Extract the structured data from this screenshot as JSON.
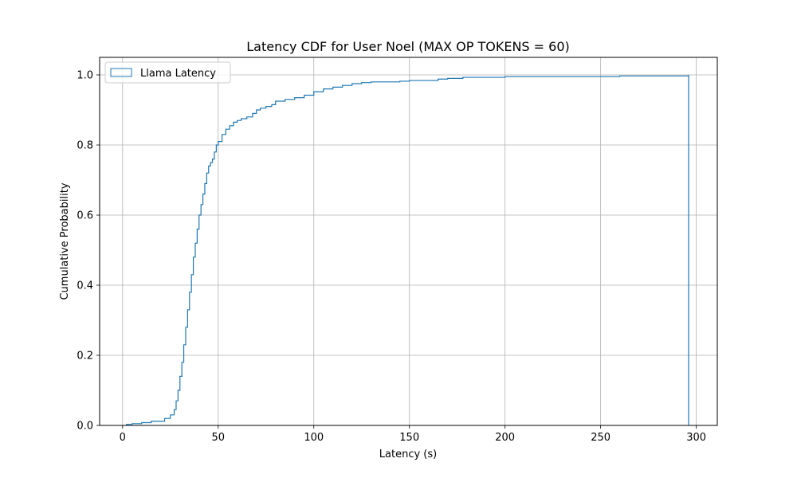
{
  "chart_data": {
    "type": "line",
    "title": "Latency CDF for User Noel (MAX OP TOKENS = 60)",
    "xlabel": "Latency (s)",
    "ylabel": "Cumulative Probability",
    "xlim": [
      -12,
      311
    ],
    "ylim": [
      0,
      1.05
    ],
    "xticks": [
      0,
      50,
      100,
      150,
      200,
      250,
      300
    ],
    "xtick_labels": [
      "0",
      "50",
      "100",
      "150",
      "200",
      "250",
      "300"
    ],
    "yticks": [
      0.0,
      0.2,
      0.4,
      0.6,
      0.8,
      1.0
    ],
    "ytick_labels": [
      "0.0",
      "0.2",
      "0.4",
      "0.6",
      "0.8",
      "1.0"
    ],
    "grid": true,
    "legend_position": "top-left",
    "series": [
      {
        "name": "Llama  Latency",
        "color": "#1f77b4",
        "style": "step",
        "x": [
          2,
          5,
          10,
          15,
          22,
          25,
          27,
          28,
          29,
          30,
          31,
          32,
          33,
          34,
          35,
          36,
          37,
          38,
          39,
          40,
          41,
          42,
          43,
          44,
          45,
          46,
          47,
          48,
          49,
          50,
          52,
          54,
          56,
          58,
          60,
          62,
          65,
          68,
          70,
          72,
          75,
          78,
          80,
          85,
          90,
          95,
          100,
          105,
          110,
          115,
          120,
          125,
          130,
          145,
          150,
          165,
          170,
          178,
          200,
          260,
          296
        ],
        "y": [
          0.003,
          0.005,
          0.008,
          0.012,
          0.02,
          0.03,
          0.045,
          0.07,
          0.1,
          0.14,
          0.18,
          0.23,
          0.28,
          0.33,
          0.38,
          0.43,
          0.48,
          0.52,
          0.56,
          0.6,
          0.63,
          0.66,
          0.69,
          0.72,
          0.74,
          0.75,
          0.76,
          0.78,
          0.8,
          0.81,
          0.83,
          0.845,
          0.855,
          0.865,
          0.87,
          0.875,
          0.88,
          0.89,
          0.9,
          0.905,
          0.91,
          0.915,
          0.925,
          0.93,
          0.935,
          0.942,
          0.952,
          0.96,
          0.965,
          0.97,
          0.975,
          0.978,
          0.98,
          0.982,
          0.984,
          0.988,
          0.99,
          0.993,
          0.995,
          0.997,
          1.0
        ]
      }
    ]
  }
}
